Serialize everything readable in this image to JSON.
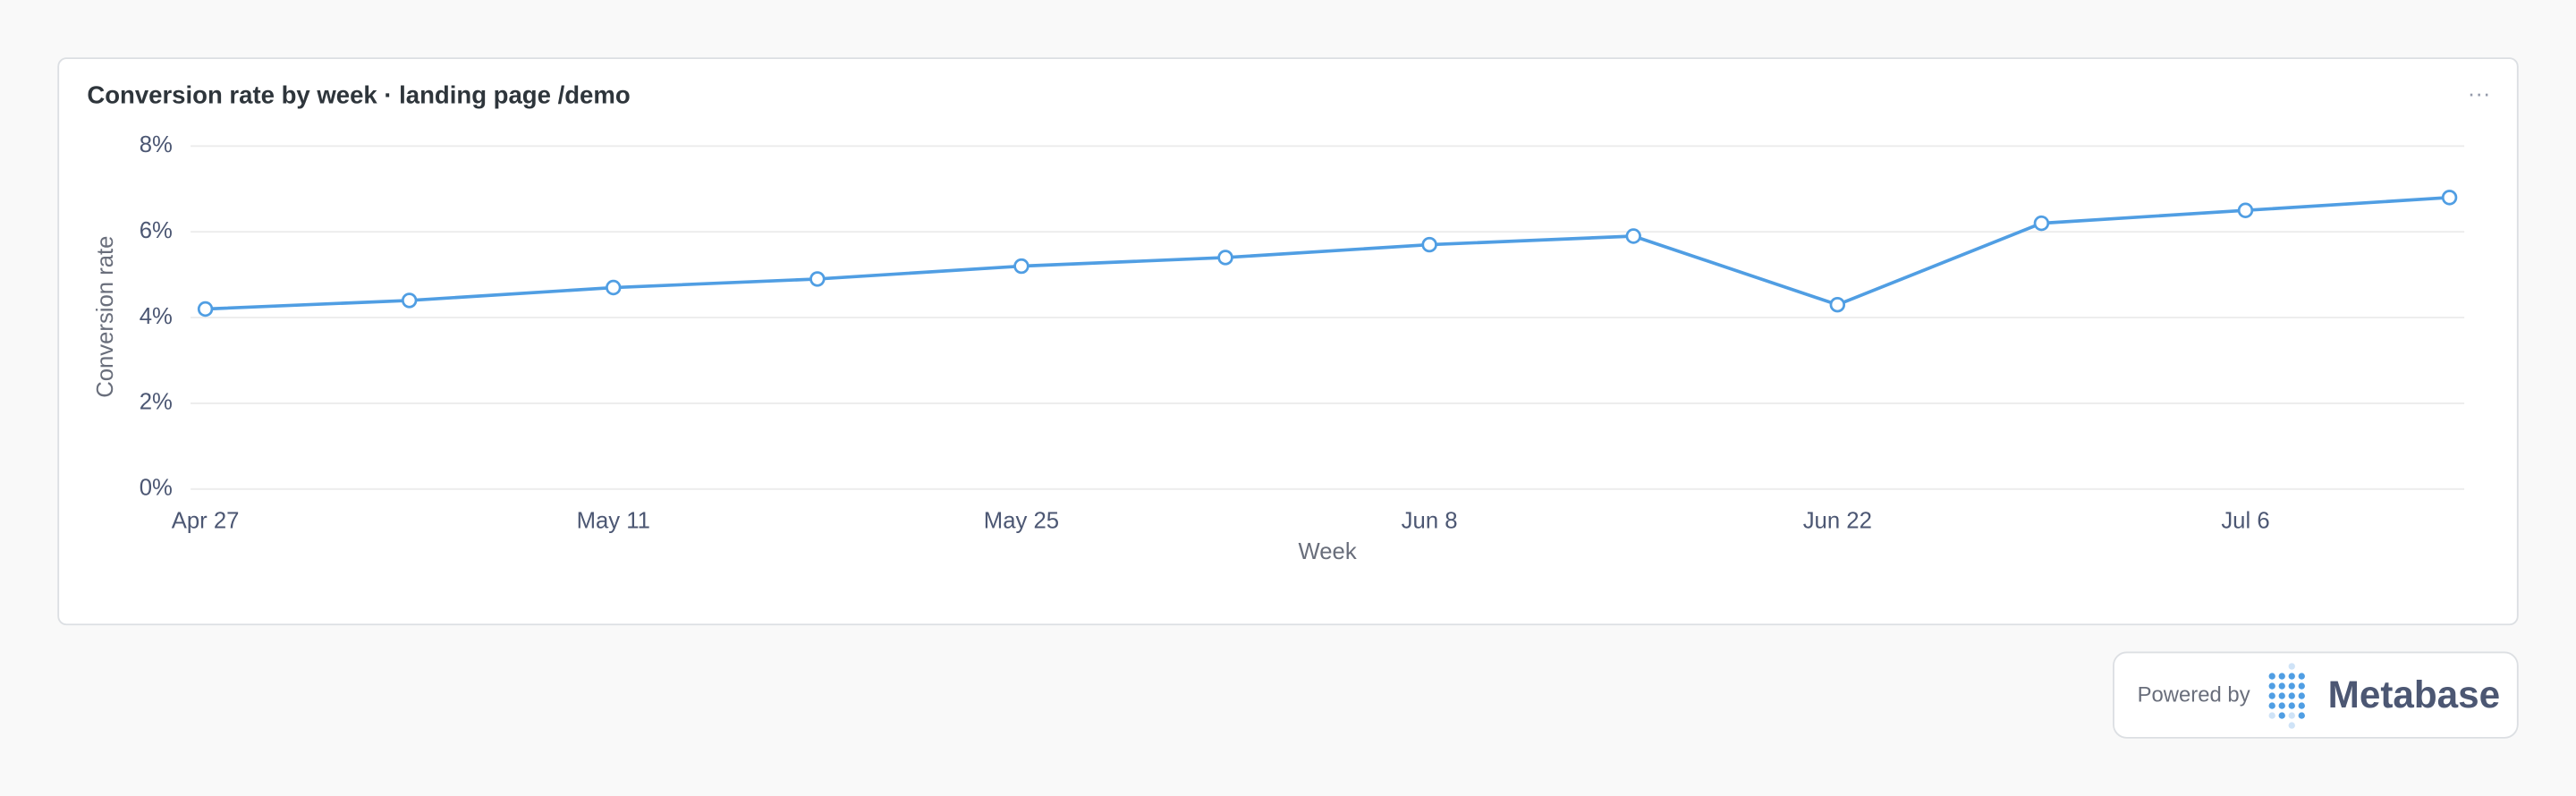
{
  "chart_data": {
    "type": "line",
    "title": "Conversion rate by week · landing page /demo",
    "x_label": "Week",
    "y_label": "Conversion rate",
    "categories": [
      "Apr 27",
      null,
      "May 11",
      null,
      "May 25",
      null,
      "Jun 8",
      null,
      "Jun 22",
      null,
      "Jul 6",
      null
    ],
    "series": [
      {
        "name": "Conversion rate",
        "color": "#509ee3",
        "values": [
          4.2,
          4.4,
          4.7,
          4.9,
          5.2,
          5.4,
          5.7,
          5.9,
          4.3,
          6.2,
          6.5,
          6.8
        ]
      }
    ],
    "ylim": [
      0,
      8
    ],
    "yticks": [
      {
        "value": 0,
        "label": "0%"
      },
      {
        "value": 2,
        "label": "2%"
      },
      {
        "value": 4,
        "label": "4%"
      },
      {
        "value": 6,
        "label": "6%"
      },
      {
        "value": 8,
        "label": "8%"
      }
    ],
    "grid": true
  },
  "footer": {
    "powered_by": "Powered by",
    "brand": "Metabase"
  }
}
